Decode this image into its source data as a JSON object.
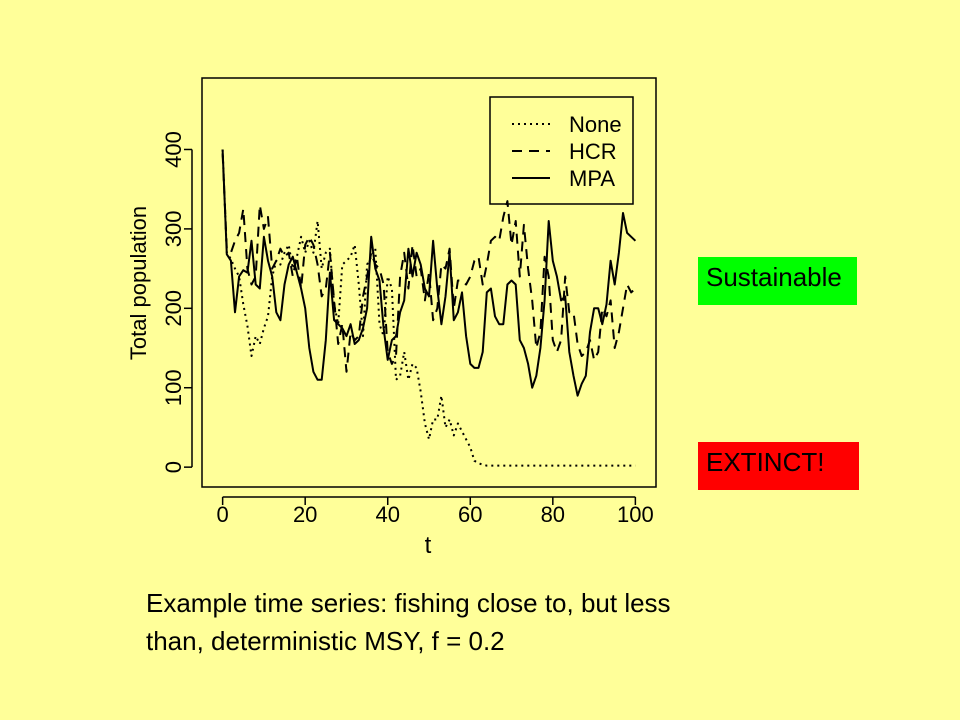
{
  "chart_data": {
    "type": "line",
    "xlabel": "t",
    "ylabel": "Total population",
    "xlim": [
      -5,
      105
    ],
    "ylim": [
      -25,
      490
    ],
    "x_ticks": [
      0,
      20,
      40,
      60,
      80,
      100
    ],
    "y_ticks": [
      0,
      100,
      200,
      300,
      400
    ],
    "x_tick_labels": [
      "0",
      "20",
      "40",
      "60",
      "80",
      "100"
    ],
    "y_tick_labels": [
      "0",
      "100",
      "200",
      "300",
      "400"
    ],
    "legend_position": "top-right",
    "grid": false,
    "series": [
      {
        "name": "None",
        "style": "dotted",
        "x": [
          0,
          1,
          2,
          3,
          4,
          5,
          6,
          7,
          8,
          9,
          10,
          11,
          12,
          13,
          14,
          15,
          16,
          17,
          18,
          19,
          20,
          21,
          22,
          23,
          24,
          25,
          26,
          27,
          28,
          29,
          30,
          31,
          32,
          33,
          34,
          35,
          36,
          37,
          38,
          39,
          40,
          41,
          42,
          43,
          44,
          45,
          46,
          47,
          48,
          49,
          50,
          51,
          52,
          53,
          54,
          55,
          56,
          57,
          58,
          59,
          60,
          61,
          62,
          63,
          64,
          65,
          66,
          67,
          68,
          69,
          70,
          71,
          72,
          73,
          74,
          75,
          76,
          77,
          78,
          79,
          80,
          81,
          82,
          83,
          84,
          85,
          86,
          87,
          88,
          89,
          90,
          91,
          92,
          93,
          94,
          95,
          96,
          97,
          98,
          99,
          100
        ],
        "values": [
          400,
          270,
          262,
          250,
          240,
          205,
          178,
          140,
          165,
          155,
          175,
          190,
          240,
          260,
          255,
          270,
          280,
          250,
          265,
          290,
          270,
          285,
          270,
          310,
          250,
          270,
          275,
          205,
          180,
          255,
          260,
          265,
          280,
          230,
          165,
          255,
          265,
          275,
          180,
          165,
          240,
          225,
          110,
          115,
          145,
          110,
          130,
          125,
          95,
          55,
          35,
          60,
          60,
          90,
          50,
          60,
          40,
          55,
          45,
          35,
          25,
          8,
          5,
          3,
          2,
          2,
          2,
          2,
          2,
          2,
          2,
          2,
          2,
          2,
          2,
          2,
          2,
          2,
          2,
          2,
          2,
          2,
          2,
          2,
          2,
          2,
          2,
          2,
          2,
          2,
          2,
          2,
          2,
          2,
          2,
          2,
          2,
          2,
          2,
          2,
          2
        ]
      },
      {
        "name": "HCR",
        "style": "dashed",
        "x": [
          0,
          1,
          2,
          3,
          4,
          5,
          6,
          7,
          8,
          9,
          10,
          11,
          12,
          13,
          14,
          15,
          16,
          17,
          18,
          19,
          20,
          21,
          22,
          23,
          24,
          25,
          26,
          27,
          28,
          29,
          30,
          31,
          32,
          33,
          34,
          35,
          36,
          37,
          38,
          39,
          40,
          41,
          42,
          43,
          44,
          45,
          46,
          47,
          48,
          49,
          50,
          51,
          52,
          53,
          54,
          55,
          56,
          57,
          58,
          59,
          60,
          61,
          62,
          63,
          64,
          65,
          66,
          67,
          68,
          69,
          70,
          71,
          72,
          73,
          74,
          75,
          76,
          77,
          78,
          79,
          80,
          81,
          82,
          83,
          84,
          85,
          86,
          87,
          88,
          89,
          90,
          91,
          92,
          93,
          94,
          95,
          96,
          97,
          98,
          99,
          100
        ],
        "values": [
          395,
          275,
          270,
          285,
          295,
          325,
          250,
          230,
          240,
          330,
          300,
          315,
          250,
          260,
          275,
          265,
          270,
          240,
          265,
          225,
          280,
          290,
          280,
          255,
          215,
          225,
          270,
          210,
          155,
          180,
          120,
          170,
          160,
          165,
          215,
          240,
          270,
          255,
          250,
          230,
          145,
          130,
          140,
          240,
          270,
          225,
          280,
          240,
          250,
          210,
          245,
          185,
          200,
          255,
          250,
          275,
          200,
          235,
          235,
          230,
          240,
          260,
          265,
          230,
          255,
          285,
          290,
          285,
          315,
          335,
          280,
          310,
          240,
          305,
          250,
          210,
          150,
          170,
          265,
          240,
          160,
          145,
          160,
          240,
          195,
          195,
          155,
          140,
          145,
          160,
          135,
          145,
          200,
          190,
          210,
          150,
          170,
          200,
          230,
          220,
          225
        ]
      },
      {
        "name": "MPA",
        "style": "solid",
        "x": [
          0,
          1,
          2,
          3,
          4,
          5,
          6,
          7,
          8,
          9,
          10,
          11,
          12,
          13,
          14,
          15,
          16,
          17,
          18,
          19,
          20,
          21,
          22,
          23,
          24,
          25,
          26,
          27,
          28,
          29,
          30,
          31,
          32,
          33,
          34,
          35,
          36,
          37,
          38,
          39,
          40,
          41,
          42,
          43,
          44,
          45,
          46,
          47,
          48,
          49,
          50,
          51,
          52,
          53,
          54,
          55,
          56,
          57,
          58,
          59,
          60,
          61,
          62,
          63,
          64,
          65,
          66,
          67,
          68,
          69,
          70,
          71,
          72,
          73,
          74,
          75,
          76,
          77,
          78,
          79,
          80,
          81,
          82,
          83,
          84,
          85,
          86,
          87,
          88,
          89,
          90,
          91,
          92,
          93,
          94,
          95,
          96,
          97,
          98,
          99,
          100
        ],
        "values": [
          400,
          268,
          260,
          195,
          240,
          248,
          245,
          285,
          230,
          225,
          290,
          260,
          240,
          195,
          185,
          230,
          255,
          265,
          245,
          225,
          200,
          150,
          120,
          110,
          110,
          160,
          245,
          185,
          180,
          175,
          165,
          180,
          155,
          160,
          175,
          200,
          290,
          250,
          235,
          175,
          135,
          160,
          165,
          195,
          210,
          275,
          240,
          270,
          255,
          225,
          215,
          285,
          225,
          180,
          215,
          270,
          185,
          195,
          220,
          165,
          130,
          125,
          125,
          145,
          220,
          225,
          190,
          180,
          180,
          230,
          235,
          230,
          160,
          150,
          130,
          100,
          115,
          150,
          210,
          310,
          260,
          240,
          210,
          215,
          145,
          115,
          90,
          105,
          115,
          170,
          200,
          200,
          180,
          205,
          260,
          230,
          270,
          320,
          295,
          290,
          285
        ]
      }
    ]
  },
  "badges": {
    "sustainable": "Sustainable",
    "extinct": "EXTINCT!"
  },
  "caption": {
    "line1": "Example time series: fishing close to, but less",
    "line2": "than, deterministic MSY, f = 0.2"
  }
}
